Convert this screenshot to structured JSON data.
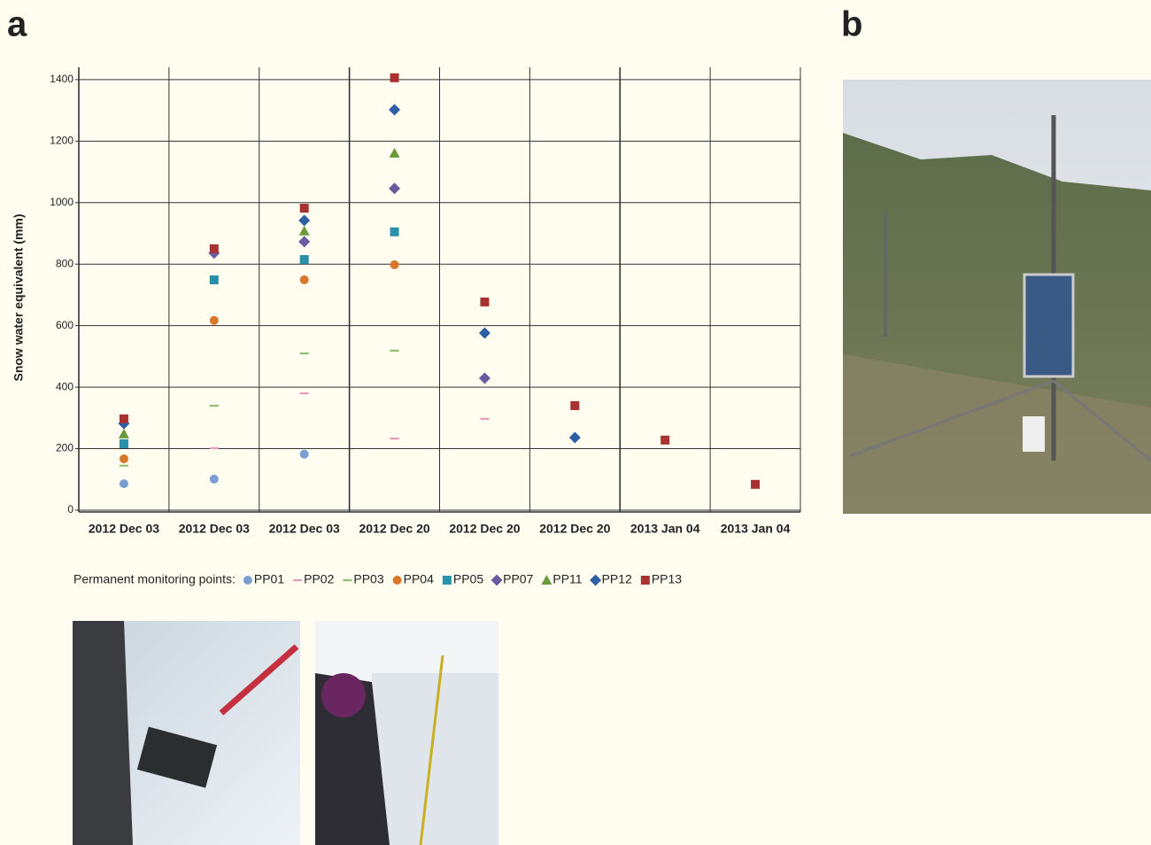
{
  "panel_labels": [
    "a",
    "b"
  ],
  "chart_data": {
    "type": "scatter",
    "y_label": "Snow water equivalent (mm)",
    "categories": [
      "2012 Dec 03",
      "2012 Dec 03",
      "2012 Dec 03",
      "2012 Dec 20",
      "2012 Dec 20",
      "2012 Dec 20",
      "2013 Jan 04",
      "2013 Jan 04"
    ],
    "ylim": [
      0,
      1440
    ],
    "yticks": [
      0,
      200,
      400,
      600,
      800,
      1000,
      1200,
      1400
    ],
    "grid": true,
    "legend_title": "Permanent monitoring points:",
    "series": [
      {
        "name": "PP01",
        "color": "#7b9ed1",
        "marker": "circle",
        "values": [
          86,
          101,
          182,
          null,
          null,
          null,
          null,
          null
        ]
      },
      {
        "name": "PP02",
        "color": "#e89ab8",
        "marker": "dash",
        "values": [
          null,
          202,
          380,
          233,
          297,
          null,
          null,
          null
        ]
      },
      {
        "name": "PP03",
        "color": "#8fbf70",
        "marker": "dash",
        "values": [
          145,
          340,
          510,
          519,
          null,
          null,
          null,
          null
        ]
      },
      {
        "name": "PP04",
        "color": "#d9782d",
        "marker": "circle",
        "values": [
          167,
          617,
          749,
          798,
          null,
          null,
          null,
          null
        ]
      },
      {
        "name": "PP05",
        "color": "#2a8fa8",
        "marker": "square",
        "values": [
          216,
          749,
          815,
          905,
          null,
          null,
          null,
          null
        ]
      },
      {
        "name": "PP07",
        "color": "#6a5aa0",
        "marker": "diamond",
        "values": [
          null,
          836,
          873,
          1046,
          429,
          null,
          null,
          null
        ]
      },
      {
        "name": "PP11",
        "color": "#6a9a3a",
        "marker": "triangle",
        "values": [
          248,
          null,
          908,
          1161,
          null,
          null,
          null,
          null
        ]
      },
      {
        "name": "PP12",
        "color": "#2e5fa3",
        "marker": "diamond",
        "values": [
          282,
          null,
          942,
          1302,
          576,
          236,
          null,
          null
        ]
      },
      {
        "name": "PP13",
        "color": "#a83232",
        "marker": "square",
        "values": [
          297,
          850,
          982,
          1406,
          677,
          340,
          228,
          84
        ]
      }
    ]
  }
}
